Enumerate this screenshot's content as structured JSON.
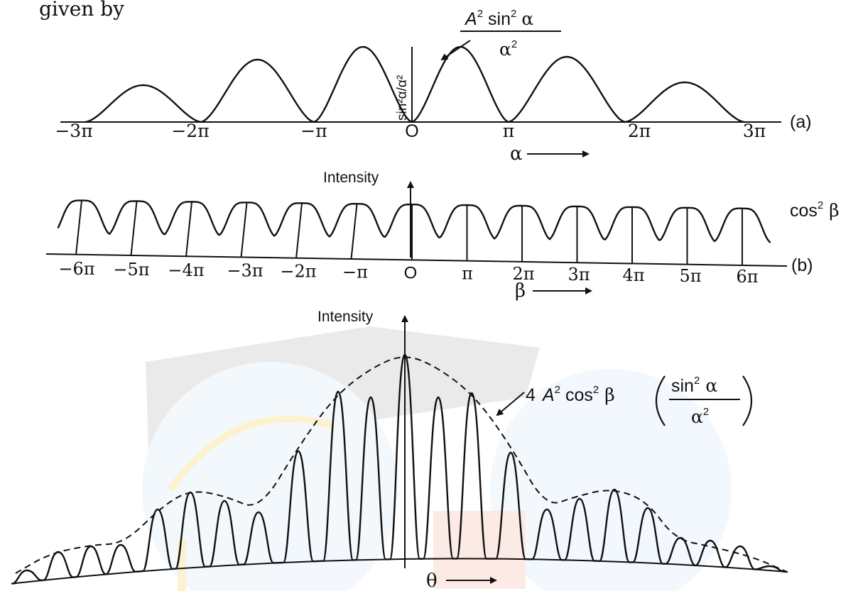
{
  "header_text": "given by",
  "panel_a": {
    "id_label": "(a)",
    "curve_label": {
      "lhs": "A",
      "exp": "2",
      "fn": "sin",
      "fn_exp": "2",
      "var": "α",
      "den": "α",
      "den_exp": "2"
    },
    "peak_axis_label": "sin²α/α²",
    "tick_labels": [
      "−3π",
      "−2π",
      "−π",
      "O",
      "π",
      "2π",
      "3π"
    ],
    "axis_label": "α"
  },
  "panel_b": {
    "id_label": "(b)",
    "axis_title": "Intensity",
    "curve_label": {
      "fn": "cos",
      "exp": "2",
      "var": "β"
    },
    "tick_labels": [
      "−6π",
      "−5π",
      "−4π",
      "−3π",
      "−2π",
      "−π",
      "O",
      "π",
      "2π",
      "3π",
      "4π",
      "5π",
      "6π"
    ],
    "axis_label": "β"
  },
  "panel_c": {
    "axis_title": "Intensity",
    "envelope_label": {
      "coef": "4",
      "a": "A",
      "a_exp": "2",
      "fn": "cos",
      "fn_exp": "2",
      "var": "β",
      "num_fn": "sin",
      "num_exp": "2",
      "num_var": "α",
      "den": "α",
      "den_exp": "2"
    },
    "axis_label": "θ"
  }
}
